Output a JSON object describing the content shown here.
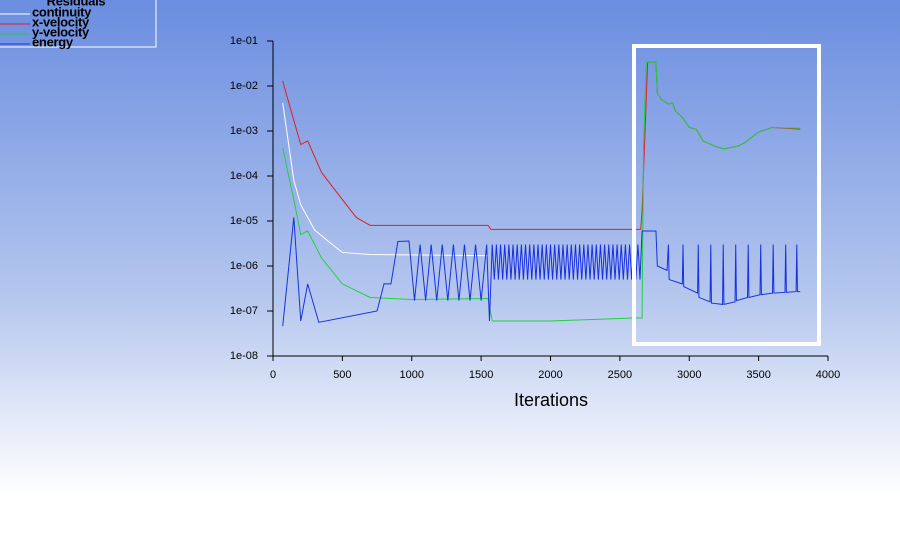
{
  "chart_data": {
    "type": "line",
    "legend_title": "Residuals",
    "x_label": "Iterations",
    "xlim": [
      0,
      4000
    ],
    "xticks": [
      0,
      500,
      1000,
      1500,
      2000,
      2500,
      3000,
      3500,
      4000
    ],
    "ylim": [
      1e-08,
      0.1
    ],
    "log_y": true,
    "yticks": [
      {
        "value": 1e-08,
        "label": "1e-08"
      },
      {
        "value": 1e-07,
        "label": "1e-07"
      },
      {
        "value": 1e-06,
        "label": "1e-06"
      },
      {
        "value": 1e-05,
        "label": "1e-05"
      },
      {
        "value": 0.0001,
        "label": "1e-04"
      },
      {
        "value": 0.001,
        "label": "1e-03"
      },
      {
        "value": 0.01,
        "label": "1e-02"
      },
      {
        "value": 0.1,
        "label": "1e-01"
      }
    ],
    "legend": "upper-left",
    "series": [
      {
        "name": "continuity",
        "color": "#ffffff",
        "x": [
          70,
          150,
          200,
          300,
          400,
          500,
          700,
          1550
        ],
        "values": [
          0.0042,
          8e-05,
          2.3e-05,
          6.3e-06,
          3.5e-06,
          2e-06,
          1.8e-06,
          1.7e-06
        ]
      },
      {
        "name": "x-velocity",
        "color": "#e02020",
        "x": [
          70,
          100,
          200,
          250,
          350,
          500,
          600,
          700,
          1550,
          1570,
          2650,
          2660,
          2700,
          2760,
          2770,
          2800,
          2850,
          2880,
          2900,
          2950,
          3000,
          3050,
          3100,
          3200,
          3250,
          3350,
          3400,
          3500,
          3600,
          3800
        ],
        "values": [
          0.013,
          0.006,
          0.0005,
          0.0006,
          0.00012,
          3e-05,
          1.2e-05,
          8e-06,
          8e-06,
          6.5e-06,
          6.5e-06,
          1.7e-05,
          0.034,
          0.034,
          0.007,
          0.005,
          0.004,
          0.0042,
          0.0028,
          0.002,
          0.0012,
          0.0011,
          0.0006,
          0.00044,
          0.0004,
          0.00046,
          0.00055,
          0.00095,
          0.0012,
          0.0011
        ]
      },
      {
        "name": "y-velocity",
        "color": "#20d040",
        "x": [
          70,
          150,
          200,
          250,
          350,
          500,
          700,
          1000,
          1550,
          1580,
          2000,
          2600,
          2660,
          2670,
          2690,
          2760,
          2770,
          2800,
          2850,
          2880,
          2900,
          2950,
          3000,
          3050,
          3100,
          3200,
          3250,
          3350,
          3400,
          3500,
          3600,
          3800
        ],
        "values": [
          0.00042,
          3e-05,
          5e-06,
          6e-06,
          1.5e-06,
          4e-07,
          2e-07,
          1.8e-07,
          1.9e-07,
          6e-08,
          6e-08,
          7e-08,
          7e-08,
          0.0004,
          0.034,
          0.034,
          0.007,
          0.005,
          0.004,
          0.0042,
          0.0028,
          0.002,
          0.0012,
          0.0011,
          0.0006,
          0.00044,
          0.0004,
          0.00046,
          0.00055,
          0.00095,
          0.0012,
          0.00115
        ]
      },
      {
        "name": "energy",
        "color": "#1830e0",
        "x": [
          70,
          150,
          200,
          250,
          330,
          750,
          800,
          850,
          900,
          980,
          1020,
          1060,
          1100,
          1140,
          1180,
          1220,
          1260,
          1300,
          1340,
          1380,
          1420,
          1460,
          1500,
          1540,
          1560,
          1580,
          1595,
          1610,
          1625,
          1640,
          1655,
          1670,
          1685,
          1700,
          1715,
          1730,
          1745,
          1760,
          1775,
          1790,
          1805,
          1820,
          1835,
          1850,
          1865,
          1880,
          1895,
          1910,
          1925,
          1940,
          1955,
          1970,
          1985,
          2000,
          2015,
          2030,
          2045,
          2060,
          2075,
          2090,
          2105,
          2120,
          2135,
          2150,
          2165,
          2180,
          2195,
          2210,
          2225,
          2240,
          2255,
          2270,
          2285,
          2300,
          2315,
          2330,
          2345,
          2360,
          2375,
          2390,
          2405,
          2420,
          2435,
          2450,
          2465,
          2480,
          2495,
          2510,
          2525,
          2540,
          2555,
          2570,
          2585,
          2600,
          2615,
          2630,
          2645,
          2660,
          2760,
          2770,
          2840,
          2850,
          2855,
          2950,
          2955,
          2960,
          3060,
          3065,
          3070,
          3150,
          3155,
          3160,
          3240,
          3245,
          3250,
          3330,
          3335,
          3340,
          3420,
          3425,
          3430,
          3510,
          3515,
          3520,
          3600,
          3605,
          3610,
          3690,
          3695,
          3700,
          3770,
          3775,
          3780,
          3800
        ],
        "values": [
          4.6e-08,
          1.2e-05,
          6e-08,
          4e-07,
          5.6e-08,
          1e-07,
          4e-07,
          4e-07,
          3.5e-06,
          3.6e-06,
          1.7e-07,
          3e-06,
          1.7e-07,
          3e-06,
          1.7e-07,
          3e-06,
          1.7e-07,
          3e-06,
          1.7e-07,
          3e-06,
          1.7e-07,
          3e-06,
          1.7e-07,
          3e-06,
          6e-08,
          3e-06,
          5e-07,
          3e-06,
          5e-07,
          3e-06,
          5e-07,
          3e-06,
          5e-07,
          3e-06,
          5e-07,
          3e-06,
          5e-07,
          3e-06,
          5e-07,
          3e-06,
          5e-07,
          3e-06,
          5e-07,
          3e-06,
          5e-07,
          3e-06,
          5e-07,
          3e-06,
          5e-07,
          3e-06,
          5e-07,
          3e-06,
          5e-07,
          3e-06,
          5e-07,
          3e-06,
          5e-07,
          3e-06,
          5e-07,
          3e-06,
          5e-07,
          3e-06,
          5e-07,
          3e-06,
          5e-07,
          3e-06,
          5e-07,
          3e-06,
          5e-07,
          3e-06,
          5e-07,
          3e-06,
          5e-07,
          3e-06,
          5e-07,
          3e-06,
          5e-07,
          3e-06,
          5e-07,
          3e-06,
          5e-07,
          3e-06,
          5e-07,
          3e-06,
          5e-07,
          3e-06,
          5e-07,
          3e-06,
          5e-07,
          3e-06,
          5e-07,
          3e-06,
          5e-07,
          3e-06,
          5e-07,
          3e-06,
          5e-07,
          6e-06,
          6e-06,
          1e-06,
          8e-07,
          3e-06,
          5e-07,
          4e-07,
          3e-06,
          3.5e-07,
          2.5e-07,
          3e-06,
          2e-07,
          1.6e-07,
          3e-06,
          1.5e-07,
          1.4e-07,
          3e-06,
          1.4e-07,
          1.6e-07,
          3e-06,
          1.7e-07,
          2e-07,
          3e-06,
          2e-07,
          2.3e-07,
          3e-06,
          2.3e-07,
          2.5e-07,
          3e-06,
          2.5e-07,
          2.6e-07,
          3e-06,
          2.6e-07,
          2.7e-07,
          3e-06,
          2.7e-07,
          2.7e-07
        ]
      }
    ]
  }
}
